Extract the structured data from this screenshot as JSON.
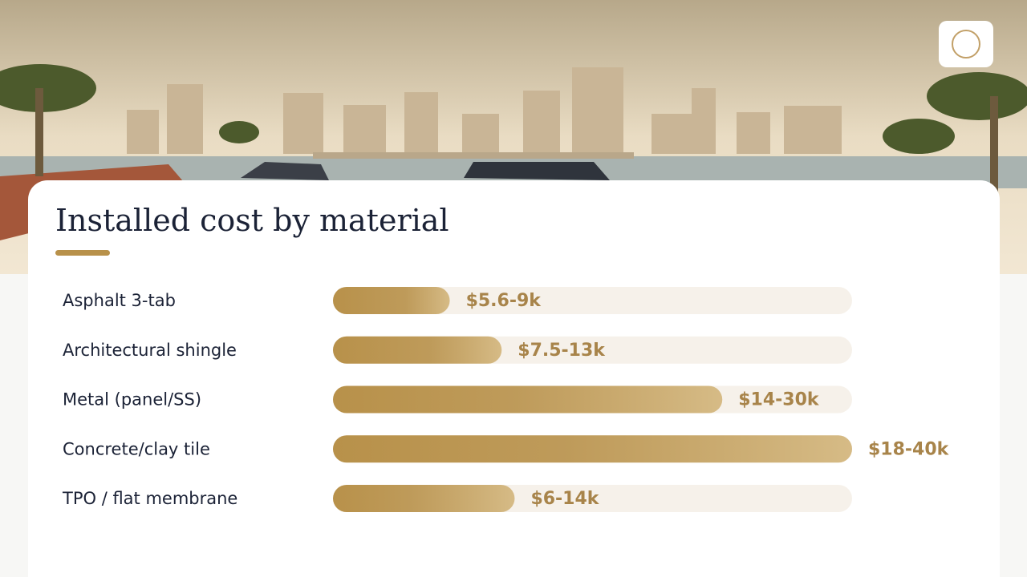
{
  "chart_data": {
    "type": "bar",
    "orientation": "horizontal",
    "title": "Installed cost by material",
    "categories": [
      "Asphalt 3-tab",
      "Architectural shingle",
      "Metal (panel/SS)",
      "Concrete/clay tile",
      "TPO / flat membrane"
    ],
    "low": [
      5.6,
      7.5,
      14,
      18,
      6
    ],
    "values": [
      9,
      13,
      30,
      40,
      14
    ],
    "value_labels": [
      "$5.6-9k",
      "$7.5-13k",
      "$14-30k",
      "$18-40k",
      "$6-14k"
    ],
    "xlim": [
      0,
      40
    ],
    "color": "#b8914a"
  }
}
